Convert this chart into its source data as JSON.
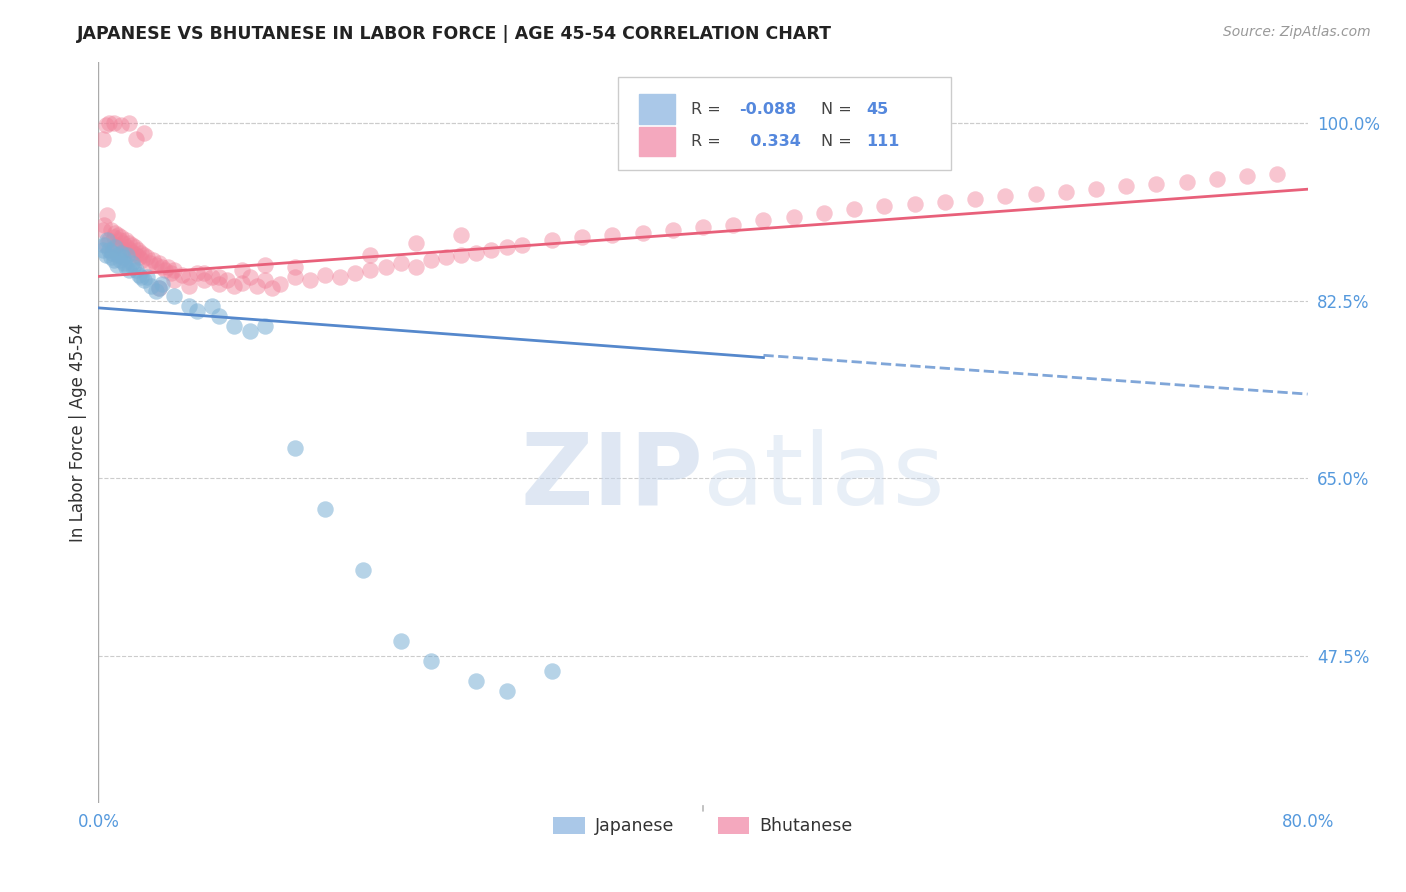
{
  "title": "JAPANESE VS BHUTANESE IN LABOR FORCE | AGE 45-54 CORRELATION CHART",
  "source": "Source: ZipAtlas.com",
  "ylabel": "In Labor Force | Age 45-54",
  "xlim": [
    0.0,
    0.8
  ],
  "ylim": [
    0.33,
    1.06
  ],
  "watermark_zip": "ZIP",
  "watermark_atlas": "atlas",
  "R_japanese": -0.088,
  "N_japanese": 45,
  "R_bhutanese": 0.334,
  "N_bhutanese": 111,
  "japanese_color": "#7bafd4",
  "bhutanese_color": "#f08098",
  "japanese_line_color": "#5588cc",
  "bhutanese_line_color": "#e8607a",
  "legend_japanese_color": "#aac8e8",
  "legend_bhutanese_color": "#f4a8be",
  "j_line_x0": 0.0,
  "j_line_x_solid_end": 0.44,
  "j_line_x_dashed_end": 0.8,
  "j_line_y0": 0.818,
  "j_line_y_solid_end": 0.769,
  "j_line_y_dashed_end": 0.733,
  "b_line_x0": 0.0,
  "b_line_x1": 0.8,
  "b_line_y0": 0.849,
  "b_line_y1": 0.935,
  "ytick_vals": [
    0.475,
    0.65,
    0.825,
    1.0
  ],
  "ytick_labels": [
    "47.5%",
    "65.0%",
    "82.5%",
    "100.0%"
  ],
  "japanese_x": [
    0.003,
    0.004,
    0.005,
    0.006,
    0.007,
    0.008,
    0.009,
    0.01,
    0.011,
    0.012,
    0.013,
    0.014,
    0.015,
    0.016,
    0.017,
    0.018,
    0.019,
    0.02,
    0.022,
    0.023,
    0.025,
    0.027,
    0.028,
    0.03,
    0.032,
    0.035,
    0.038,
    0.04,
    0.042,
    0.05,
    0.06,
    0.065,
    0.075,
    0.08,
    0.09,
    0.1,
    0.11,
    0.13,
    0.15,
    0.175,
    0.2,
    0.22,
    0.25,
    0.27,
    0.3
  ],
  "japanese_y": [
    0.875,
    0.88,
    0.87,
    0.885,
    0.875,
    0.868,
    0.872,
    0.865,
    0.878,
    0.86,
    0.87,
    0.865,
    0.872,
    0.868,
    0.862,
    0.858,
    0.87,
    0.855,
    0.862,
    0.858,
    0.855,
    0.85,
    0.848,
    0.845,
    0.848,
    0.84,
    0.835,
    0.838,
    0.842,
    0.83,
    0.82,
    0.815,
    0.82,
    0.81,
    0.8,
    0.795,
    0.8,
    0.68,
    0.62,
    0.56,
    0.49,
    0.47,
    0.45,
    0.44,
    0.46
  ],
  "bhutanese_x": [
    0.003,
    0.004,
    0.005,
    0.006,
    0.007,
    0.008,
    0.009,
    0.01,
    0.011,
    0.012,
    0.013,
    0.014,
    0.015,
    0.016,
    0.017,
    0.018,
    0.019,
    0.02,
    0.021,
    0.022,
    0.023,
    0.024,
    0.025,
    0.026,
    0.027,
    0.028,
    0.029,
    0.03,
    0.032,
    0.034,
    0.036,
    0.038,
    0.04,
    0.042,
    0.044,
    0.046,
    0.048,
    0.05,
    0.055,
    0.06,
    0.065,
    0.07,
    0.075,
    0.08,
    0.085,
    0.09,
    0.095,
    0.1,
    0.105,
    0.11,
    0.115,
    0.12,
    0.13,
    0.14,
    0.15,
    0.16,
    0.17,
    0.18,
    0.19,
    0.2,
    0.21,
    0.22,
    0.23,
    0.24,
    0.25,
    0.26,
    0.27,
    0.28,
    0.3,
    0.32,
    0.34,
    0.36,
    0.38,
    0.4,
    0.42,
    0.44,
    0.46,
    0.48,
    0.5,
    0.52,
    0.54,
    0.56,
    0.58,
    0.6,
    0.62,
    0.64,
    0.66,
    0.68,
    0.7,
    0.72,
    0.74,
    0.76,
    0.78,
    0.003,
    0.005,
    0.007,
    0.01,
    0.015,
    0.02,
    0.025,
    0.03,
    0.04,
    0.05,
    0.06,
    0.07,
    0.08,
    0.095,
    0.11,
    0.13,
    0.18,
    0.21,
    0.24
  ],
  "bhutanese_y": [
    0.895,
    0.9,
    0.88,
    0.91,
    0.885,
    0.895,
    0.875,
    0.888,
    0.892,
    0.88,
    0.89,
    0.885,
    0.888,
    0.882,
    0.875,
    0.885,
    0.878,
    0.882,
    0.875,
    0.88,
    0.872,
    0.878,
    0.87,
    0.875,
    0.868,
    0.872,
    0.865,
    0.87,
    0.868,
    0.862,
    0.865,
    0.86,
    0.862,
    0.858,
    0.855,
    0.858,
    0.852,
    0.855,
    0.85,
    0.848,
    0.852,
    0.845,
    0.848,
    0.842,
    0.845,
    0.84,
    0.843,
    0.848,
    0.84,
    0.845,
    0.838,
    0.842,
    0.848,
    0.845,
    0.85,
    0.848,
    0.852,
    0.855,
    0.858,
    0.862,
    0.858,
    0.865,
    0.868,
    0.87,
    0.872,
    0.875,
    0.878,
    0.88,
    0.885,
    0.888,
    0.89,
    0.892,
    0.895,
    0.898,
    0.9,
    0.905,
    0.908,
    0.912,
    0.915,
    0.918,
    0.92,
    0.922,
    0.925,
    0.928,
    0.93,
    0.932,
    0.935,
    0.938,
    0.94,
    0.942,
    0.945,
    0.948,
    0.95,
    0.985,
    0.998,
    1.0,
    1.0,
    0.998,
    1.0,
    0.985,
    0.99,
    0.838,
    0.845,
    0.84,
    0.852,
    0.848,
    0.855,
    0.86,
    0.858,
    0.87,
    0.882,
    0.89
  ]
}
